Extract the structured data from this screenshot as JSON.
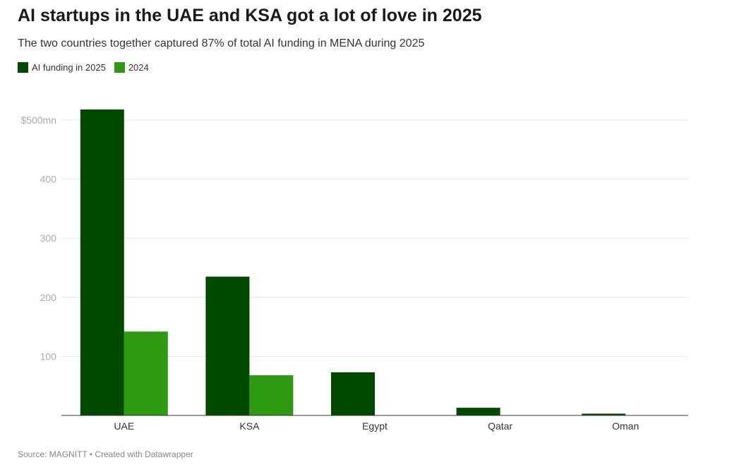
{
  "title": "AI startups in the UAE and KSA got a lot of love in 2025",
  "subtitle": "The two countries together captured 87% of total AI funding in MENA during 2025",
  "source": "Source: MAGNITT • Created with Datawrapper",
  "chart_data": {
    "type": "bar",
    "categories": [
      "UAE",
      "KSA",
      "Egypt",
      "Qatar",
      "Oman"
    ],
    "series": [
      {
        "name": "AI funding in 2025",
        "color": "#004a00",
        "values": [
          518,
          235,
          73,
          13,
          3
        ]
      },
      {
        "name": "2024",
        "color": "#2e9a11",
        "values": [
          142,
          68,
          0,
          0,
          0
        ]
      }
    ],
    "ylim": [
      0,
      500
    ],
    "yticks": [
      {
        "v": 100,
        "label": "100"
      },
      {
        "v": 200,
        "label": "200"
      },
      {
        "v": 300,
        "label": "300"
      },
      {
        "v": 400,
        "label": "400"
      },
      {
        "v": 500,
        "label": "$500mn"
      }
    ],
    "grid": true,
    "legend": "top-left"
  }
}
